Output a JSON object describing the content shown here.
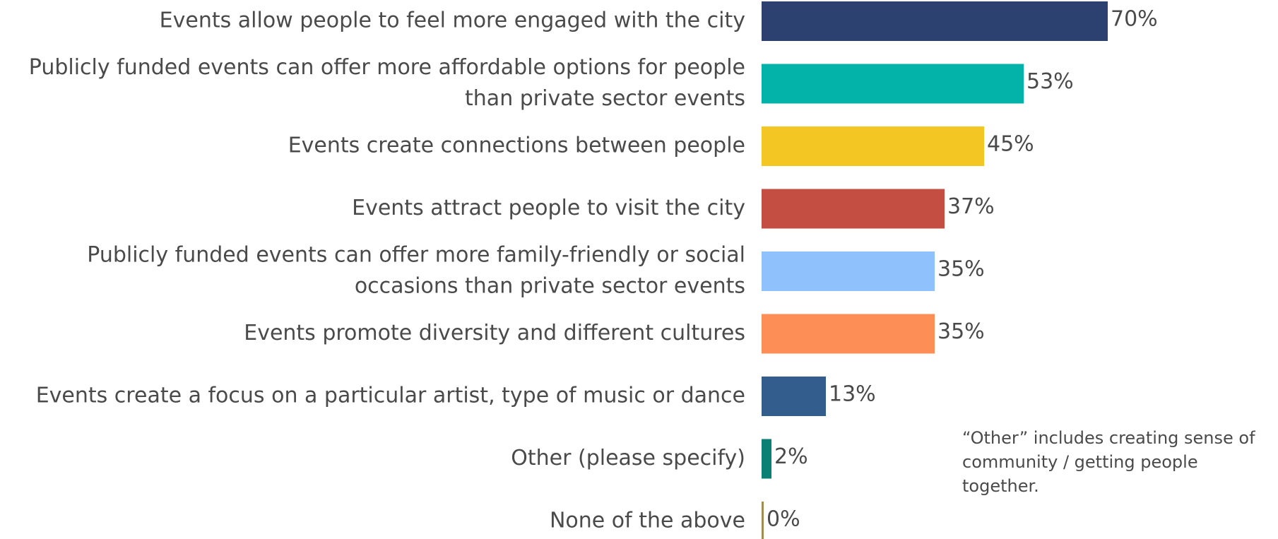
{
  "chart_data": {
    "type": "bar",
    "orientation": "horizontal",
    "categories": [
      [
        "Events allow people to feel more engaged with the city"
      ],
      [
        "Publicly funded events can offer more affordable options for people",
        "than private sector events"
      ],
      [
        "Events create connections between people"
      ],
      [
        "Events attract people to visit the city"
      ],
      [
        "Publicly funded events can offer more family-friendly or social",
        "occasions than private sector events"
      ],
      [
        "Events promote diversity and different cultures"
      ],
      [
        "Events create a focus on a particular artist, type of music or dance"
      ],
      [
        "Other (please specify)"
      ],
      [
        "None of the above"
      ]
    ],
    "values": [
      70,
      53,
      45,
      37,
      35,
      35,
      13,
      2,
      0
    ],
    "value_labels": [
      "70%",
      "53%",
      "45%",
      "37%",
      "35%",
      "35%",
      "13%",
      "2%",
      "0%"
    ],
    "colors": [
      "#2c4170",
      "#03b3aa",
      "#f3c623",
      "#c44e41",
      "#8fc1fc",
      "#fd8e55",
      "#335d8c",
      "#0a7f73",
      "#a38b54"
    ],
    "xlim": [
      0,
      100
    ],
    "grid": false,
    "legend": "none",
    "title": "",
    "xlabel": "",
    "ylabel": ""
  },
  "note": "“Other” includes creating sense of community / getting people together."
}
